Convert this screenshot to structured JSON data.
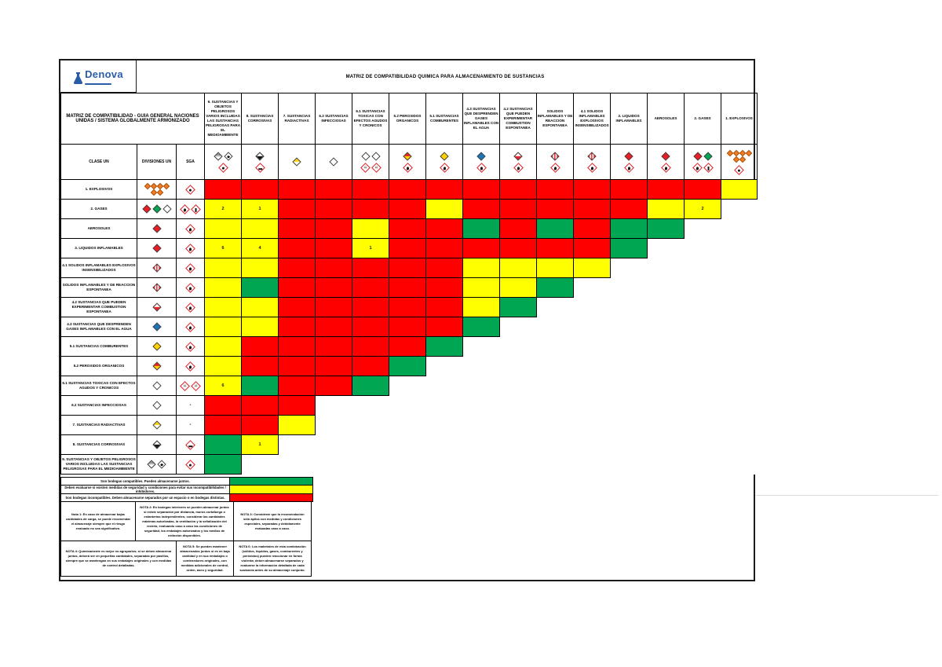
{
  "main_title": "MATRIZ DE COMPATIBILIDAD QUIMICA PARA ALMACENAMIENTO DE SUSTANCIAS",
  "logo": {
    "name": "Denova"
  },
  "corner_title": "MATRIZ DE COMPATIBILIDAD - GUIA GENERAL NACIONES UNIDAS / SISTEMA GLOBALMENTE ARMONIZADO",
  "left_headers": {
    "clase": "CLASE UN",
    "divisiones": "DIVISIONES UN",
    "sga": "SGA"
  },
  "chart_data": {
    "type": "heatmap",
    "color_meaning": {
      "R": "incompatibles",
      "Y": "evaluar / con nota",
      "G": "compatibles"
    },
    "colors": {
      "R": "#FE0000",
      "Y": "#FFFF00",
      "G": "#00A651"
    },
    "columns": [
      {
        "label": "9. SUSTANCIAS Y OBJETOS PELIGROSOS VARIOS INCLUIDAS LAS SUSTANCIAS PELIGROSAS PARA EL MEDIOAMBIENTE",
        "divisions": [
          "nine9",
          "env"
        ],
        "sga": [
          "env-sga"
        ]
      },
      {
        "label": "8. SUSTANCIAS CORROSIVAS",
        "divisions": [
          "corr8"
        ],
        "sga": [
          "corrosion"
        ]
      },
      {
        "label": "7. SUSTANCIAS RADIACTIVAS",
        "divisions": [
          "radio7"
        ],
        "sga": []
      },
      {
        "label": "6.2 SUSTANCIAS INFECCIOSAS",
        "divisions": [
          "infect62"
        ],
        "sga": []
      },
      {
        "label": "6.1 SUSTANCIAS TOXICAS CON EFECTOS AGUDOS Y CRONICOS",
        "divisions": [
          "tox61",
          "tox61"
        ],
        "sga": [
          "skull",
          "health"
        ]
      },
      {
        "label": "5.2 PEROXIDOS ORGANICOS",
        "divisions": [
          "perox52"
        ],
        "sga": [
          "flame-circle"
        ]
      },
      {
        "label": "5.1 SUSTANCIAS COMBURENTES",
        "divisions": [
          "ox51"
        ],
        "sga": [
          "flame-circle"
        ]
      },
      {
        "label": "4.3 SUSTANCIAS QUE DESPRENDEN GASES INFLAMABLES CON EL AGUA",
        "divisions": [
          "blue43"
        ],
        "sga": [
          "flame"
        ]
      },
      {
        "label": "4.2 SUSTANCIAS QUE PUEDEN EXPERIMENTAR COMBUSTION ESPONTANEA",
        "divisions": [
          "half42"
        ],
        "sga": [
          "flame"
        ]
      },
      {
        "label": "SOLIDOS INFLAMABLES Y DE REACCION ESPONTANEA",
        "divisions": [
          "striped41"
        ],
        "sga": [
          "flame"
        ]
      },
      {
        "label": "4.1 SOLIDOS INFLAMABLES EXPLOSIVOS INSENSIBILIZADOS",
        "divisions": [
          "striped41"
        ],
        "sga": [
          "flame"
        ]
      },
      {
        "label": "3. LIQUIDOS INFLAMABLES",
        "divisions": [
          "flam"
        ],
        "sga": [
          "flame"
        ]
      },
      {
        "label": "AEROSOLES",
        "divisions": [
          "flam"
        ],
        "sga": [
          "flame"
        ]
      },
      {
        "label": "2. GASES",
        "divisions": [
          "gasred",
          "gasgreen"
        ],
        "sga": [
          "flame",
          "cylinder"
        ]
      },
      {
        "label": "1. EXPLOSIVOS",
        "divisions": [
          "cluster"
        ],
        "sga": [
          "bomb"
        ]
      }
    ],
    "rows": [
      {
        "label": "1. EXPLOSIVOS",
        "divisions": [
          "cluster"
        ],
        "sga": [
          "bomb"
        ],
        "cells": [
          "R",
          "R",
          "R",
          "R",
          "R",
          "R",
          "R",
          "R",
          "R",
          "R",
          "R",
          "R",
          "R",
          "R",
          "Y"
        ]
      },
      {
        "label": "2. GASES",
        "divisions": [
          "gasred",
          "gasgreen",
          "gaswhite"
        ],
        "sga": [
          "flame",
          "cylinder"
        ],
        "cells": [
          "Y2",
          "Y1",
          "R",
          "R",
          "R",
          "R",
          "Y",
          "R",
          "R",
          "R",
          "R",
          "R",
          "Y",
          "Y2"
        ]
      },
      {
        "label": "AEROSOLES",
        "divisions": [
          "flam"
        ],
        "sga": [
          "flame"
        ],
        "cells": [
          "Y",
          "Y",
          "R",
          "R",
          "Y",
          "R",
          "R",
          "G",
          "R",
          "G",
          "R",
          "G",
          "G"
        ]
      },
      {
        "label": "3. LIQUIDOS INFLAMABLES",
        "divisions": [
          "flam"
        ],
        "sga": [
          "flame"
        ],
        "cells": [
          "Y6",
          "Y4",
          "R",
          "R",
          "Y1",
          "R",
          "R",
          "R",
          "R",
          "R",
          "R",
          "G"
        ]
      },
      {
        "label": "4.1 SOLIDOS INFLAMABLES EXPLOSIVOS INSENSIBILIZADOS",
        "divisions": [
          "striped41"
        ],
        "sga": [
          "flame"
        ],
        "cells": [
          "Y",
          "Y",
          "R",
          "R",
          "R",
          "R",
          "R",
          "Y",
          "Y",
          "Y",
          "Y"
        ]
      },
      {
        "label": "SOLIDOS INFLAMABLES Y DE REACCION ESPONTANEA",
        "divisions": [
          "striped41"
        ],
        "sga": [
          "flame"
        ],
        "cells": [
          "Y",
          "G",
          "R",
          "R",
          "R",
          "R",
          "R",
          "Y",
          "Y",
          "G"
        ]
      },
      {
        "label": "4.2 SUSTANCIAS QUE PUEDEN EXPERIMENTAR COMBUSTION ESPONTANEA",
        "divisions": [
          "half42"
        ],
        "sga": [
          "flame"
        ],
        "cells": [
          "Y",
          "Y",
          "R",
          "R",
          "R",
          "R",
          "R",
          "Y",
          "G"
        ]
      },
      {
        "label": "4.3 SUSTANCIAS QUE DESPRENDEN GASES INFLAMABLES CON EL AGUA",
        "divisions": [
          "blue43"
        ],
        "sga": [
          "flame"
        ],
        "cells": [
          "Y",
          "Y",
          "R",
          "R",
          "R",
          "R",
          "R",
          "G"
        ]
      },
      {
        "label": "5.1 SUSTANCIAS COMBURENTES",
        "divisions": [
          "ox51"
        ],
        "sga": [
          "flame-circle"
        ],
        "cells": [
          "Y",
          "R",
          "R",
          "R",
          "R",
          "R",
          "G"
        ]
      },
      {
        "label": "5.2 PEROXIDOS ORGANICOS",
        "divisions": [
          "perox52"
        ],
        "sga": [
          "flame-circle"
        ],
        "cells": [
          "Y",
          "R",
          "R",
          "R",
          "R",
          "G"
        ]
      },
      {
        "label": "6.1 SUSTANCIAS TOXICAS CON EFECTOS AGUDOS Y CRONICOS",
        "divisions": [
          "tox61"
        ],
        "sga": [
          "skull",
          "health"
        ],
        "cells": [
          "Y6",
          "G",
          "R",
          "R",
          "G"
        ]
      },
      {
        "label": "6.2 SUSTANCIAS INFECCIOSAS",
        "divisions": [
          "infect62"
        ],
        "sga": [
          "dash"
        ],
        "cells": [
          "R",
          "R",
          "R"
        ]
      },
      {
        "label": "7. SUSTANCIAS RADIACTIVAS",
        "divisions": [
          "radio7"
        ],
        "sga": [
          "dash"
        ],
        "cells": [
          "R",
          "R",
          "Y"
        ]
      },
      {
        "label": "8. SUSTANCIAS CORROSIVAS",
        "divisions": [
          "corr8"
        ],
        "sga": [
          "corrosion"
        ],
        "cells": [
          "G",
          "Y1"
        ]
      },
      {
        "label": "9. SUSTANCIAS Y OBJETOS PELIGROSOS VARIOS INCLUIDAS LAS SUSTANCIAS PELIGROSAS PARA EL MEDIOAMBIENTE",
        "divisions": [
          "nine9",
          "env"
        ],
        "sga": [
          "env-sga"
        ],
        "cells": [
          "G"
        ]
      }
    ]
  },
  "legend": [
    {
      "text": "Son bodegas compatibles. Pueden almacenarse juntos.",
      "color": "#00A651"
    },
    {
      "text": "Deben evaluarse si existen medidas de seguridad y condiciones para evitar sus incompatibilidades / inhibidores.",
      "color": "#FFFF00"
    },
    {
      "text": "Son bodegas incompatibles. Deben almacenarse separados por un espacio o en bodegas distintas.",
      "color": "#FE0000"
    }
  ],
  "notes": [
    {
      "id": "nota-1",
      "text": "Nota 1: En caso de almacenar bajas cantidades de carga, se puede recomendar el almacenaje siempre que el riesgo evaluado no sea significativo."
    },
    {
      "id": "nota-2",
      "text": "NOTA 2: En bodegas interiores se pueden almacenar juntos si existe separación por distancia, muros cortafuego o estanterías independientes; considerar las cantidades máximas autorizadas, la ventilación y la señalización del recinto, evaluando caso a caso las condiciones de seguridad, los embalajes autorizados y los medios de extinción disponibles."
    },
    {
      "id": "nota-3",
      "text": "NOTA 3: Considerar que la recomendación sólo aplica con medidas y condiciones especiales, separadas y debidamente evaluadas caso a caso."
    },
    {
      "id": "nota-4",
      "text": "NOTA 4: Químicamente es mejor no agruparlos; si se deben almacenar juntos, deberá ser en pequeñas cantidades, separadas por pasillos, siempre que se mantengan en sus embalajes originales y con medidas de control detalladas."
    },
    {
      "id": "nota-5",
      "text": "NOTA 5: Se pueden mantener almacenados juntos si es en baja cantidad y en sus embalajes o contenedores originales, con medidas adicionales de control, orden, aseo y seguridad."
    },
    {
      "id": "nota-6",
      "text": "NOTA 6: Los materiales de esta combinación (sólidos, líquidos, gases, comburentes y peróxidos) pueden reaccionar en forma violenta; deben almacenarse separados y evaluarse la información detallada de cada sustancia antes de su almacenaje conjunto."
    }
  ]
}
